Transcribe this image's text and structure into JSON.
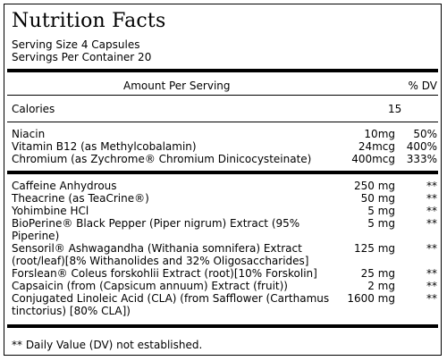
{
  "title": "Nutrition Facts",
  "serving_size": "Serving Size  4 Capsules",
  "servings_per_container": "Servings Per Container  20",
  "header": {
    "amount": "Amount Per Serving",
    "dv": "% DV"
  },
  "calories": {
    "name": "Calories",
    "amount": "15"
  },
  "vitamins": [
    {
      "name": "Niacin",
      "amount": "10mg",
      "dv": "50%"
    },
    {
      "name": "Vitamin B12 (as Methylcobalamin)",
      "amount": "24mcg",
      "dv": "400%"
    },
    {
      "name": "Chromium (as Zychrome® Chromium Dinicocysteinate)",
      "amount": "400mcg",
      "dv": "333%"
    }
  ],
  "ingredients": [
    {
      "name": "Caffeine Anhydrous",
      "amount": "250 mg",
      "dv": "**"
    },
    {
      "name": "Theacrine (as TeaCrine®)",
      "amount": "50 mg",
      "dv": "**"
    },
    {
      "name": "Yohimbine HCl",
      "amount": "5 mg",
      "dv": "**"
    },
    {
      "name": "BioPerine® Black Pepper (Piper nigrum) Extract (95%",
      "name2": "Piperine)",
      "amount": "5 mg",
      "dv": "**"
    },
    {
      "name": "Sensoril® Ashwagandha (Withania somnifera) Extract",
      "name2": "(root/leaf)[8% Withanolides and 32% Oligosaccharides]",
      "amount": "125 mg",
      "dv": "**"
    },
    {
      "name": "Forslean® Coleus forskohlii Extract (root)[10% Forskolin]",
      "amount": "25 mg",
      "dv": "**"
    },
    {
      "name": "Capsaicin (from (Capsicum annuum) Extract (fruit))",
      "amount": "2 mg",
      "dv": "**"
    },
    {
      "name": "Conjugated Linoleic Acid (CLA) (from Safflower (Carthamus",
      "name2": "tinctorius) [80% CLA])",
      "amount": "1600 mg",
      "dv": "**"
    }
  ],
  "footnote": "** Daily Value (DV) not established."
}
